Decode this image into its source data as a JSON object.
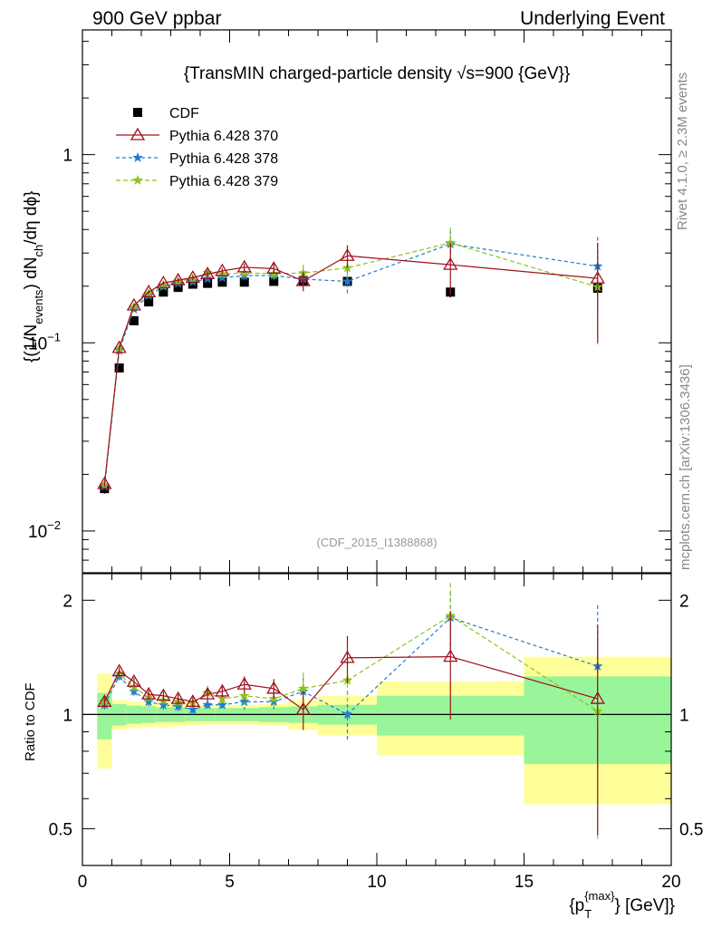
{
  "header": {
    "left": "900 GeV ppbar",
    "right": "Underlying Event"
  },
  "side_labels": {
    "rivet": "Rivet 4.1.0, ≥ 2.3M events",
    "mcplots": "mcplots.cern.ch [arXiv:1306.3436]"
  },
  "chart_data": {
    "type": "scatter",
    "title": "{TransMIN charged-particle density √s=900 {GeV}}",
    "watermark": "(CDF_2015_I1388868)",
    "xlabel_main": "{p",
    "xlabel_sup": "{max}",
    "xlabel_sub": "T",
    "xlabel_tail": "} [GeV]}",
    "ylabel": "{(1/N_events) dN_ch/dη dϕ}",
    "ylabel_parts": {
      "a": "{(1/N",
      "b": "events",
      "c": ") dN",
      "d": "ch",
      "e": "/dη  dϕ}"
    },
    "ratio_ylabel": "Ratio to CDF",
    "xlim": [
      0,
      20
    ],
    "ylim": [
      0.006,
      4.6
    ],
    "ylog": true,
    "ratio_ylim": [
      0.4,
      2.35
    ],
    "x_ticks": [
      "0",
      "5",
      "10",
      "15",
      "20"
    ],
    "y_ticks": [
      "1",
      "10",
      "10"
    ],
    "y_tick_values": [
      1,
      0.1,
      0.01
    ],
    "y_tick_exps": [
      "",
      "−1",
      "−2"
    ],
    "ratio_ticks": [
      "0.5",
      "1",
      "2"
    ],
    "ratio_tick_values": [
      0.5,
      1,
      2
    ],
    "x": [
      0.75,
      1.25,
      1.75,
      2.25,
      2.75,
      3.25,
      3.75,
      4.25,
      4.75,
      5.5,
      6.5,
      7.5,
      9.0,
      12.5,
      17.5
    ],
    "bin_edges": [
      0.5,
      1.0,
      1.5,
      2.0,
      2.5,
      3.0,
      3.5,
      4.0,
      4.5,
      5.0,
      6.0,
      7.0,
      8.0,
      10.0,
      15.0,
      20.0
    ],
    "data_band_inner": [
      0.14,
      0.065,
      0.055,
      0.05,
      0.045,
      0.045,
      0.04,
      0.04,
      0.04,
      0.04,
      0.045,
      0.05,
      0.06,
      0.12,
      0.26
    ],
    "data_band_outer": [
      0.28,
      0.09,
      0.08,
      0.075,
      0.075,
      0.07,
      0.065,
      0.06,
      0.06,
      0.06,
      0.065,
      0.09,
      0.12,
      0.22,
      0.42
    ],
    "legend": [
      "CDF",
      "Pythia 6.428 370",
      "Pythia 6.428 378",
      "Pythia 6.428 379"
    ],
    "series": [
      {
        "name": "CDF",
        "marker": "square",
        "color": "#000000",
        "values": [
          0.0168,
          0.0735,
          0.131,
          0.165,
          0.186,
          0.197,
          0.205,
          0.207,
          0.21,
          0.21,
          0.212,
          0.214,
          0.212,
          0.186,
          0.195
        ],
        "errors": [
          0.001,
          0.003,
          0.004,
          0.005,
          0.005,
          0.005,
          0.005,
          0.005,
          0.005,
          0.006,
          0.007,
          0.008,
          0.009,
          0.012,
          0.02
        ]
      },
      {
        "name": "Pythia 6.428 370",
        "marker": "triangle",
        "color": "#a0101e",
        "dash": "",
        "values": [
          0.0178,
          0.094,
          0.158,
          0.186,
          0.208,
          0.215,
          0.222,
          0.232,
          0.241,
          0.252,
          0.248,
          0.213,
          0.29,
          0.26,
          0.22
        ],
        "errors": [
          0.0006,
          0.002,
          0.003,
          0.004,
          0.005,
          0.006,
          0.007,
          0.008,
          0.009,
          0.012,
          0.015,
          0.025,
          0.04,
          0.08,
          0.12
        ],
        "ratio": [
          1.08,
          1.3,
          1.22,
          1.13,
          1.12,
          1.1,
          1.08,
          1.13,
          1.15,
          1.2,
          1.17,
          1.03,
          1.41,
          1.42,
          1.1
        ],
        "ratio_err": [
          0.03,
          0.03,
          0.03,
          0.03,
          0.03,
          0.03,
          0.03,
          0.04,
          0.04,
          0.06,
          0.07,
          0.12,
          0.2,
          0.45,
          0.62
        ]
      },
      {
        "name": "Pythia 6.428 378",
        "marker": "star",
        "color": "#1e7dd4",
        "dash": "4,3",
        "values": [
          0.0172,
          0.091,
          0.151,
          0.178,
          0.199,
          0.207,
          0.211,
          0.219,
          0.222,
          0.227,
          0.228,
          0.218,
          0.212,
          0.335,
          0.255
        ],
        "errors": [
          0.0006,
          0.002,
          0.003,
          0.004,
          0.005,
          0.006,
          0.007,
          0.008,
          0.009,
          0.012,
          0.015,
          0.025,
          0.03,
          0.06,
          0.11
        ],
        "ratio": [
          1.06,
          1.26,
          1.15,
          1.08,
          1.06,
          1.05,
          1.03,
          1.06,
          1.06,
          1.08,
          1.08,
          1.15,
          1.0,
          1.8,
          1.34
        ],
        "ratio_err": [
          0.03,
          0.03,
          0.03,
          0.03,
          0.03,
          0.03,
          0.03,
          0.04,
          0.04,
          0.05,
          0.06,
          0.1,
          0.15,
          0.3,
          0.6
        ]
      },
      {
        "name": "Pythia 6.428 379",
        "marker": "star",
        "color": "#8ec21c",
        "dash": "5,3",
        "values": [
          0.0176,
          0.093,
          0.155,
          0.183,
          0.202,
          0.212,
          0.219,
          0.236,
          0.232,
          0.235,
          0.233,
          0.235,
          0.25,
          0.34,
          0.198
        ],
        "errors": [
          0.0006,
          0.002,
          0.003,
          0.004,
          0.005,
          0.006,
          0.007,
          0.008,
          0.009,
          0.012,
          0.015,
          0.025,
          0.03,
          0.07,
          0.1
        ],
        "ratio": [
          1.08,
          1.28,
          1.18,
          1.11,
          1.09,
          1.08,
          1.07,
          1.14,
          1.1,
          1.12,
          1.1,
          1.17,
          1.23,
          1.82,
          1.02
        ],
        "ratio_err": [
          0.03,
          0.03,
          0.03,
          0.03,
          0.03,
          0.03,
          0.03,
          0.05,
          0.05,
          0.06,
          0.07,
          0.12,
          0.15,
          0.4,
          0.55
        ]
      }
    ]
  }
}
